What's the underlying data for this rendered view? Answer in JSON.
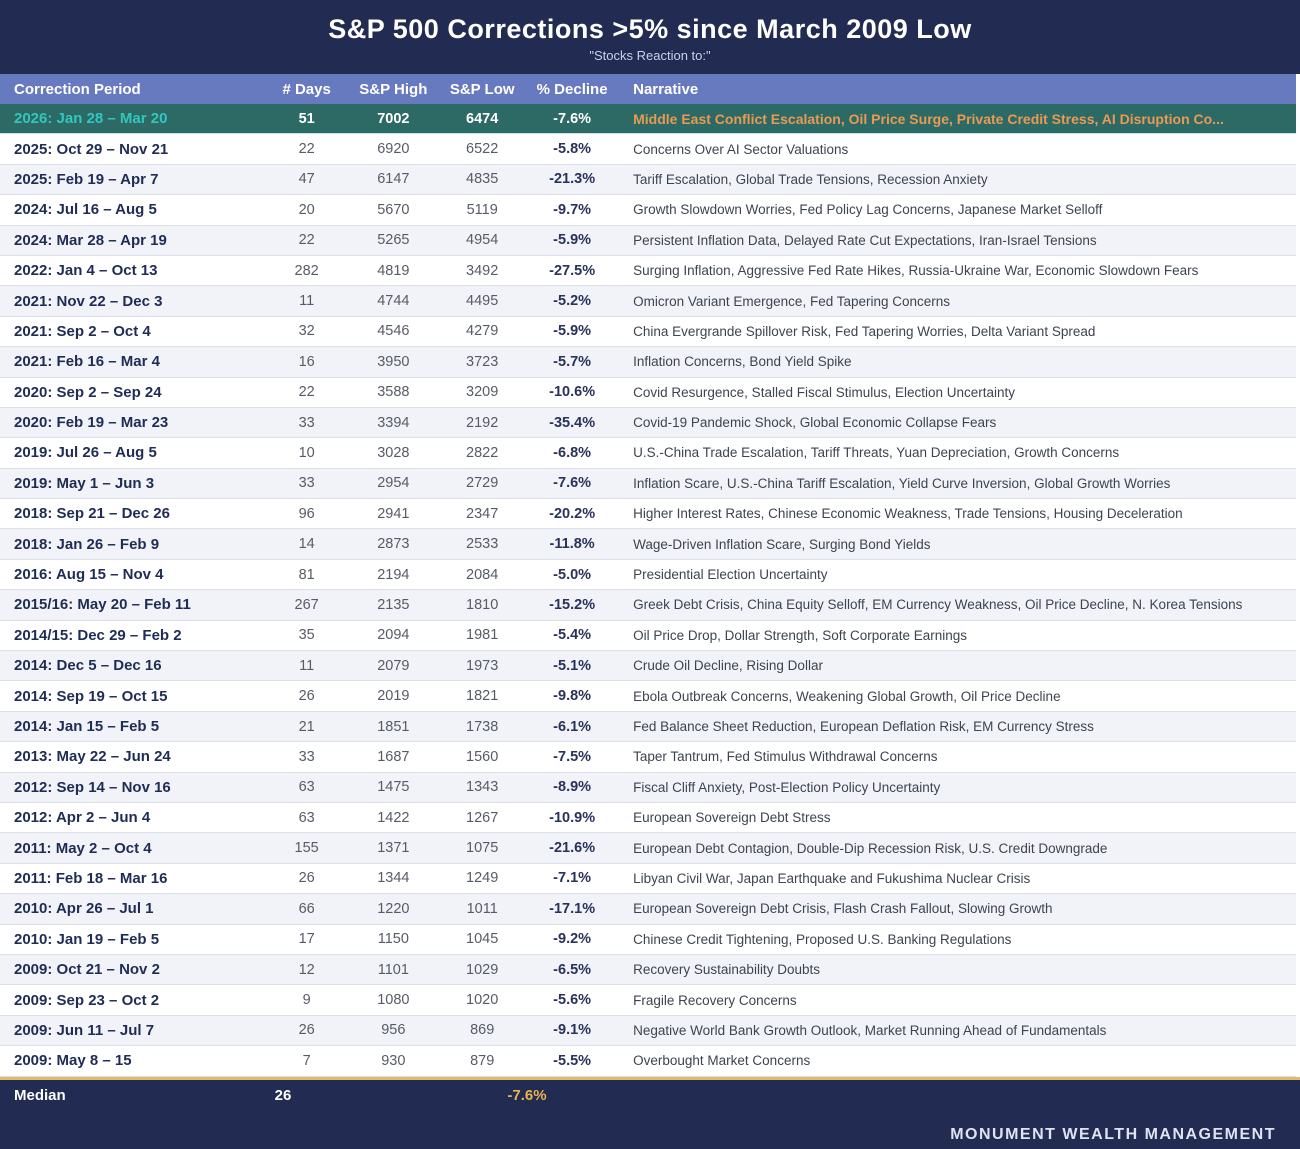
{
  "title": "S&P 500 Corrections >5% since March 2009 Low",
  "subtitle": "\"Stocks Reaction to:\"",
  "footer": {
    "brand": "MONUMENT WEALTH MANAGEMENT"
  },
  "colors": {
    "background_navy": "#222b52",
    "header_blue": "#6779bf",
    "highlight_row_teal": "#2d6a65",
    "highlight_period_teal": "#33c6be",
    "highlight_narrative_orange": "#e89a55",
    "median_border_gold": "#e3ba67",
    "median_decline_gold": "#e9b44e",
    "alt_row_gray": "#f1f3f8"
  },
  "chart_data": {
    "type": "table",
    "title": "S&P 500 Corrections >5% since March 2009 Low",
    "columns": [
      "Correction Period",
      "# Days",
      "S&P High",
      "S&P Low",
      "% Decline",
      "Narrative"
    ],
    "rows": [
      {
        "period": "2026: Jan 28 – Mar 20",
        "days": "51",
        "high": "7002",
        "low": "6474",
        "decline": "-7.6%",
        "narrative": "Middle East Conflict Escalation, Oil Price Surge, Private Credit Stress, AI Disruption Co...",
        "highlighted": true
      },
      {
        "period": "2025: Oct 29 – Nov 21",
        "days": "22",
        "high": "6920",
        "low": "6522",
        "decline": "-5.8%",
        "narrative": "Concerns Over AI Sector Valuations"
      },
      {
        "period": "2025: Feb 19 – Apr 7",
        "days": "47",
        "high": "6147",
        "low": "4835",
        "decline": "-21.3%",
        "narrative": "Tariff Escalation, Global Trade Tensions, Recession Anxiety"
      },
      {
        "period": "2024: Jul 16 – Aug 5",
        "days": "20",
        "high": "5670",
        "low": "5119",
        "decline": "-9.7%",
        "narrative": "Growth Slowdown Worries, Fed Policy Lag Concerns, Japanese Market Selloff"
      },
      {
        "period": "2024: Mar 28 – Apr 19",
        "days": "22",
        "high": "5265",
        "low": "4954",
        "decline": "-5.9%",
        "narrative": "Persistent Inflation Data, Delayed Rate Cut Expectations, Iran-Israel Tensions"
      },
      {
        "period": "2022: Jan 4 – Oct 13",
        "days": "282",
        "high": "4819",
        "low": "3492",
        "decline": "-27.5%",
        "narrative": "Surging Inflation, Aggressive Fed Rate Hikes, Russia-Ukraine War, Economic Slowdown Fears"
      },
      {
        "period": "2021: Nov 22 – Dec 3",
        "days": "11",
        "high": "4744",
        "low": "4495",
        "decline": "-5.2%",
        "narrative": "Omicron Variant Emergence, Fed Tapering Concerns"
      },
      {
        "period": "2021: Sep 2 – Oct 4",
        "days": "32",
        "high": "4546",
        "low": "4279",
        "decline": "-5.9%",
        "narrative": "China Evergrande Spillover Risk, Fed Tapering Worries, Delta Variant Spread"
      },
      {
        "period": "2021: Feb 16 – Mar 4",
        "days": "16",
        "high": "3950",
        "low": "3723",
        "decline": "-5.7%",
        "narrative": "Inflation Concerns, Bond Yield Spike"
      },
      {
        "period": "2020: Sep 2 – Sep 24",
        "days": "22",
        "high": "3588",
        "low": "3209",
        "decline": "-10.6%",
        "narrative": "Covid Resurgence, Stalled Fiscal Stimulus, Election Uncertainty"
      },
      {
        "period": "2020: Feb 19 – Mar 23",
        "days": "33",
        "high": "3394",
        "low": "2192",
        "decline": "-35.4%",
        "narrative": "Covid-19 Pandemic Shock, Global Economic Collapse Fears"
      },
      {
        "period": "2019: Jul 26 – Aug 5",
        "days": "10",
        "high": "3028",
        "low": "2822",
        "decline": "-6.8%",
        "narrative": "U.S.-China Trade Escalation, Tariff Threats, Yuan Depreciation, Growth Concerns"
      },
      {
        "period": "2019: May 1 – Jun 3",
        "days": "33",
        "high": "2954",
        "low": "2729",
        "decline": "-7.6%",
        "narrative": "Inflation Scare, U.S.-China Tariff Escalation, Yield Curve Inversion, Global Growth Worries"
      },
      {
        "period": "2018: Sep 21 – Dec 26",
        "days": "96",
        "high": "2941",
        "low": "2347",
        "decline": "-20.2%",
        "narrative": "Higher Interest Rates, Chinese Economic Weakness, Trade Tensions, Housing Deceleration"
      },
      {
        "period": "2018: Jan 26 – Feb 9",
        "days": "14",
        "high": "2873",
        "low": "2533",
        "decline": "-11.8%",
        "narrative": "Wage-Driven Inflation Scare, Surging Bond Yields"
      },
      {
        "period": "2016: Aug 15 – Nov 4",
        "days": "81",
        "high": "2194",
        "low": "2084",
        "decline": "-5.0%",
        "narrative": "Presidential Election Uncertainty"
      },
      {
        "period": "2015/16: May 20 – Feb 11",
        "days": "267",
        "high": "2135",
        "low": "1810",
        "decline": "-15.2%",
        "narrative": "Greek Debt Crisis, China Equity Selloff, EM Currency Weakness, Oil Price Decline, N. Korea Tensions"
      },
      {
        "period": "2014/15: Dec 29 – Feb 2",
        "days": "35",
        "high": "2094",
        "low": "1981",
        "decline": "-5.4%",
        "narrative": "Oil Price Drop, Dollar Strength, Soft Corporate Earnings"
      },
      {
        "period": "2014: Dec 5 – Dec 16",
        "days": "11",
        "high": "2079",
        "low": "1973",
        "decline": "-5.1%",
        "narrative": "Crude Oil Decline, Rising Dollar"
      },
      {
        "period": "2014: Sep 19 – Oct 15",
        "days": "26",
        "high": "2019",
        "low": "1821",
        "decline": "-9.8%",
        "narrative": "Ebola Outbreak Concerns, Weakening Global Growth, Oil Price Decline"
      },
      {
        "period": "2014: Jan 15 – Feb 5",
        "days": "21",
        "high": "1851",
        "low": "1738",
        "decline": "-6.1%",
        "narrative": "Fed Balance Sheet Reduction, European Deflation Risk, EM Currency Stress"
      },
      {
        "period": "2013: May 22 – Jun 24",
        "days": "33",
        "high": "1687",
        "low": "1560",
        "decline": "-7.5%",
        "narrative": "Taper Tantrum, Fed Stimulus Withdrawal Concerns"
      },
      {
        "period": "2012: Sep 14 – Nov 16",
        "days": "63",
        "high": "1475",
        "low": "1343",
        "decline": "-8.9%",
        "narrative": "Fiscal Cliff Anxiety, Post-Election Policy Uncertainty"
      },
      {
        "period": "2012: Apr 2 – Jun 4",
        "days": "63",
        "high": "1422",
        "low": "1267",
        "decline": "-10.9%",
        "narrative": "European Sovereign Debt Stress"
      },
      {
        "period": "2011: May 2 – Oct 4",
        "days": "155",
        "high": "1371",
        "low": "1075",
        "decline": "-21.6%",
        "narrative": "European Debt Contagion, Double-Dip Recession Risk, U.S. Credit Downgrade"
      },
      {
        "period": "2011: Feb 18 – Mar 16",
        "days": "26",
        "high": "1344",
        "low": "1249",
        "decline": "-7.1%",
        "narrative": "Libyan Civil War, Japan Earthquake and Fukushima Nuclear Crisis"
      },
      {
        "period": "2010: Apr 26 – Jul 1",
        "days": "66",
        "high": "1220",
        "low": "1011",
        "decline": "-17.1%",
        "narrative": "European Sovereign Debt Crisis, Flash Crash Fallout, Slowing Growth"
      },
      {
        "period": "2010: Jan 19 – Feb 5",
        "days": "17",
        "high": "1150",
        "low": "1045",
        "decline": "-9.2%",
        "narrative": "Chinese Credit Tightening, Proposed U.S. Banking Regulations"
      },
      {
        "period": "2009: Oct 21 – Nov 2",
        "days": "12",
        "high": "1101",
        "low": "1029",
        "decline": "-6.5%",
        "narrative": "Recovery Sustainability Doubts"
      },
      {
        "period": "2009: Sep 23 – Oct 2",
        "days": "9",
        "high": "1080",
        "low": "1020",
        "decline": "-5.6%",
        "narrative": "Fragile Recovery Concerns"
      },
      {
        "period": "2009: Jun 11 – Jul 7",
        "days": "26",
        "high": "956",
        "low": "869",
        "decline": "-9.1%",
        "narrative": "Negative World Bank Growth Outlook, Market Running Ahead of Fundamentals"
      },
      {
        "period": "2009: May 8 – 15",
        "days": "7",
        "high": "930",
        "low": "879",
        "decline": "-5.5%",
        "narrative": "Overbought Market Concerns"
      }
    ],
    "median": {
      "label": "Median",
      "days": "26",
      "decline": "-7.6%"
    }
  }
}
